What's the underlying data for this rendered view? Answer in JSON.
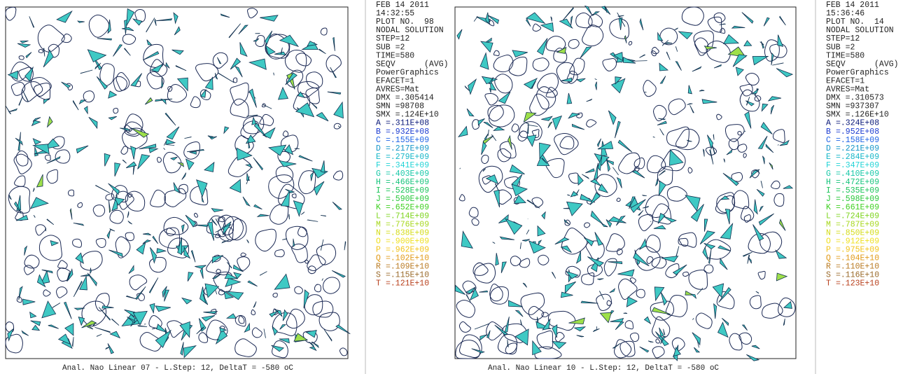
{
  "panels": [
    {
      "header_lines": [
        "FEB 14 2011",
        "14:32:55",
        "PLOT NO.  98",
        "NODAL SOLUTION",
        "STEP=12",
        "SUB =2",
        "TIME=580",
        "SEQV      (AVG)",
        "PowerGraphics",
        "EFACET=1",
        "AVRES=Mat",
        "DMX =.305414",
        "SMN =98708",
        "SMX =.124E+10"
      ],
      "legend": [
        {
          "key": "A",
          "value": "=.311E+08"
        },
        {
          "key": "B",
          "value": "=.932E+08"
        },
        {
          "key": "C",
          "value": "=.155E+09"
        },
        {
          "key": "D",
          "value": "=.217E+09"
        },
        {
          "key": "E",
          "value": "=.279E+09"
        },
        {
          "key": "F",
          "value": "=.341E+09"
        },
        {
          "key": "G",
          "value": "=.403E+09"
        },
        {
          "key": "H",
          "value": "=.466E+09"
        },
        {
          "key": "I",
          "value": "=.528E+09"
        },
        {
          "key": "J",
          "value": "=.590E+09"
        },
        {
          "key": "K",
          "value": "=.652E+09"
        },
        {
          "key": "L",
          "value": "=.714E+09"
        },
        {
          "key": "M",
          "value": "=.776E+09"
        },
        {
          "key": "N",
          "value": "=.838E+09"
        },
        {
          "key": "O",
          "value": "=.900E+09"
        },
        {
          "key": "P",
          "value": "=.962E+09"
        },
        {
          "key": "Q",
          "value": "=.102E+10"
        },
        {
          "key": "R",
          "value": "=.109E+10"
        },
        {
          "key": "S",
          "value": "=.115E+10"
        },
        {
          "key": "T",
          "value": "=.121E+10"
        }
      ],
      "caption": "Anal. Nao Linear 07 - L.Step: 12, DeltaT = -580 oC"
    },
    {
      "header_lines": [
        "FEB 14 2011",
        "15:36:46",
        "PLOT NO.  14",
        "NODAL SOLUTION",
        "STEP=12",
        "SUB =2",
        "TIME=580",
        "SEQV      (AVG)",
        "PowerGraphics",
        "EFACET=1",
        "AVRES=Mat",
        "DMX =.310573",
        "SMN =937307",
        "SMX =.126E+10"
      ],
      "legend": [
        {
          "key": "A",
          "value": "=.324E+08"
        },
        {
          "key": "B",
          "value": "=.952E+08"
        },
        {
          "key": "C",
          "value": "=.158E+09"
        },
        {
          "key": "D",
          "value": "=.221E+09"
        },
        {
          "key": "E",
          "value": "=.284E+09"
        },
        {
          "key": "F",
          "value": "=.347E+09"
        },
        {
          "key": "G",
          "value": "=.410E+09"
        },
        {
          "key": "H",
          "value": "=.472E+09"
        },
        {
          "key": "I",
          "value": "=.535E+09"
        },
        {
          "key": "J",
          "value": "=.598E+09"
        },
        {
          "key": "K",
          "value": "=.661E+09"
        },
        {
          "key": "L",
          "value": "=.724E+09"
        },
        {
          "key": "M",
          "value": "=.787E+09"
        },
        {
          "key": "N",
          "value": "=.850E+09"
        },
        {
          "key": "O",
          "value": "=.912E+09"
        },
        {
          "key": "P",
          "value": "=.975E+09"
        },
        {
          "key": "Q",
          "value": "=.104E+10"
        },
        {
          "key": "R",
          "value": "=.110E+10"
        },
        {
          "key": "S",
          "value": "=.116E+10"
        },
        {
          "key": "T",
          "value": "=.123E+10"
        }
      ],
      "caption": "Anal. Nao Linear 10 - L.Step: 12, DeltaT = -580 oC"
    }
  ]
}
